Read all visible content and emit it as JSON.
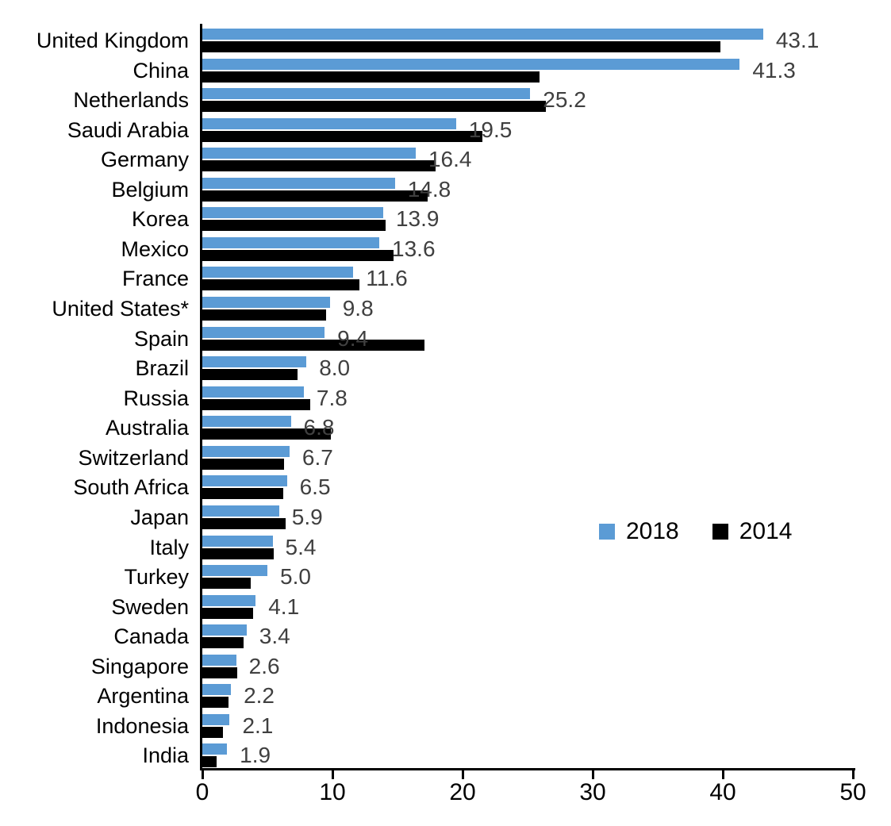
{
  "chart_data": {
    "type": "bar",
    "orientation": "horizontal",
    "title": "",
    "xlabel": "",
    "ylabel": "",
    "xlim": [
      0,
      50
    ],
    "x_ticks": [
      "0",
      "10",
      "20",
      "30",
      "40",
      "50"
    ],
    "grid": false,
    "legend_position": "middle-right",
    "categories": [
      "United Kingdom",
      "China",
      "Netherlands",
      "Saudi Arabia",
      "Germany",
      "Belgium",
      "Korea",
      "Mexico",
      "France",
      "United States*",
      "Spain",
      "Brazil",
      "Russia",
      "Australia",
      "Switzerland",
      "South Africa",
      "Japan",
      "Italy",
      "Turkey",
      "Sweden",
      "Canada",
      "Singapore",
      "Argentina",
      "Indonesia",
      "India"
    ],
    "series": [
      {
        "name": "2018",
        "color": "#5B9BD5",
        "values": [
          43.1,
          41.3,
          25.2,
          19.5,
          16.4,
          14.8,
          13.9,
          13.6,
          11.6,
          9.8,
          9.4,
          8.0,
          7.8,
          6.8,
          6.7,
          6.5,
          5.9,
          5.4,
          5.0,
          4.1,
          3.4,
          2.6,
          2.2,
          2.1,
          1.9
        ]
      },
      {
        "name": "2014",
        "color": "#000000",
        "values": [
          39.8,
          25.9,
          26.4,
          21.5,
          17.9,
          17.3,
          14.1,
          14.7,
          12.1,
          9.5,
          17.1,
          7.3,
          8.3,
          9.9,
          6.3,
          6.2,
          6.4,
          5.5,
          3.7,
          3.9,
          3.2,
          2.7,
          2.0,
          1.6,
          1.1
        ]
      }
    ],
    "data_labels": {
      "series": "2018",
      "values": [
        "43.1",
        "41.3",
        "25.2",
        "19.5",
        "16.4",
        "14.8",
        "13.9",
        "13.6",
        "11.6",
        "9.8",
        "9.4",
        "8.0",
        "7.8",
        "6.8",
        "6.7",
        "6.5",
        "5.9",
        "5.4",
        "5.0",
        "4.1",
        "3.4",
        "2.6",
        "2.2",
        "2.1",
        "1.9"
      ]
    }
  },
  "legend": {
    "items": [
      {
        "label": "2018",
        "color": "#5B9BD5"
      },
      {
        "label": "2014",
        "color": "#000000"
      }
    ]
  }
}
